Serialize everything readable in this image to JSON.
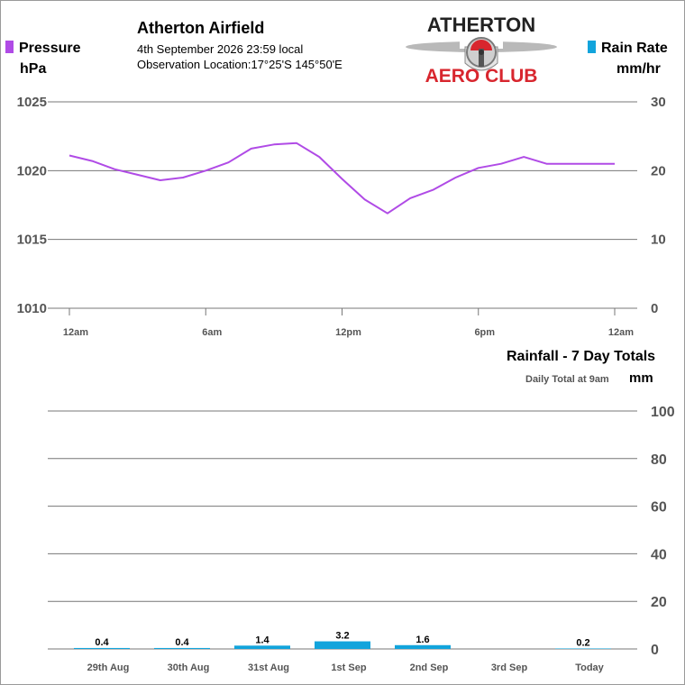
{
  "header": {
    "station": "Atherton Airfield",
    "datetime": "4th September 2026  23:59 local",
    "location": "Observation Location:17°25'S 145°50'E"
  },
  "logo": {
    "line1": "ATHERTON",
    "line2": "AERO CLUB",
    "text_color": "#222222",
    "accent": "#d8262e"
  },
  "colors": {
    "pressure": "#b04be6",
    "rain": "#12a4dc",
    "grid": "#777777",
    "axis_text": "#555555"
  },
  "legend": {
    "pressure_label": "Pressure",
    "pressure_unit": "hPa",
    "rain_label": "Rain Rate",
    "rain_unit": "mm/hr"
  },
  "rainfall_panel": {
    "title": "Rainfall - 7 Day Totals",
    "subtitle": "Daily Total at 9am",
    "unit": "mm"
  },
  "chart_data": [
    {
      "type": "line",
      "series": [
        {
          "name": "Pressure",
          "axis": "left",
          "x": [
            0,
            1,
            2,
            3,
            4,
            5,
            6,
            7,
            8,
            9,
            10,
            11,
            12,
            13,
            14,
            15,
            16,
            17,
            18,
            19,
            20,
            21,
            22,
            23,
            24
          ],
          "values": [
            1021.1,
            1020.7,
            1020.1,
            1019.7,
            1019.3,
            1019.5,
            1020.0,
            1020.6,
            1021.6,
            1021.9,
            1022.0,
            1021.0,
            1019.4,
            1017.9,
            1016.9,
            1018.0,
            1018.6,
            1019.5,
            1020.2,
            1020.5,
            1021.0,
            1020.5,
            1020.5,
            1020.5,
            1020.5
          ]
        }
      ],
      "x_end_hour": 24,
      "xticks": [
        {
          "hour": 0,
          "label": "12am"
        },
        {
          "hour": 6,
          "label": "6am"
        },
        {
          "hour": 12,
          "label": "12pm"
        },
        {
          "hour": 18,
          "label": "6pm"
        },
        {
          "hour": 24,
          "label": "12am"
        }
      ],
      "yleft": {
        "min": 1010,
        "max": 1025,
        "ticks": [
          "1010",
          "1015",
          "1020",
          "1025"
        ]
      },
      "yright": {
        "min": 0,
        "max": 30,
        "ticks": [
          "0",
          "10",
          "20",
          "30"
        ]
      },
      "grid": true
    },
    {
      "type": "bar",
      "categories": [
        "29th Aug",
        "30th Aug",
        "31st Aug",
        "1st Sep",
        "2nd Sep",
        "3rd Sep",
        "Today"
      ],
      "values": [
        0.4,
        0.4,
        1.4,
        3.2,
        1.6,
        0,
        0.2
      ],
      "value_labels": [
        "0.4",
        "0.4",
        "1.4",
        "3.2",
        "1.6",
        "",
        "0.2"
      ],
      "yright": {
        "min": 0,
        "max": 100,
        "ticks": [
          "0",
          "20",
          "40",
          "60",
          "80",
          "100"
        ]
      },
      "grid": true
    }
  ]
}
